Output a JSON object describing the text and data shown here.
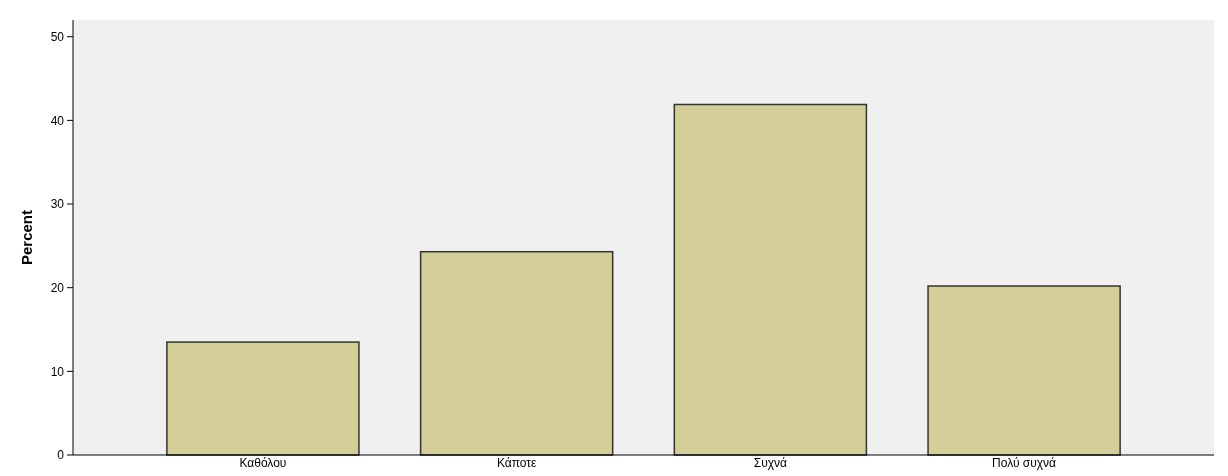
{
  "chart_data": {
    "type": "bar",
    "ylabel": "Percent",
    "categories": [
      "Καθόλου",
      "Κάποτε",
      "Συχνά",
      "Πολύ συχνά"
    ],
    "values": [
      13.5,
      24.3,
      41.9,
      20.2
    ],
    "color": "#d3ce97",
    "ylim": [
      0,
      52
    ],
    "yticks": [
      0,
      10,
      20,
      30,
      40,
      50
    ],
    "grid": false
  }
}
